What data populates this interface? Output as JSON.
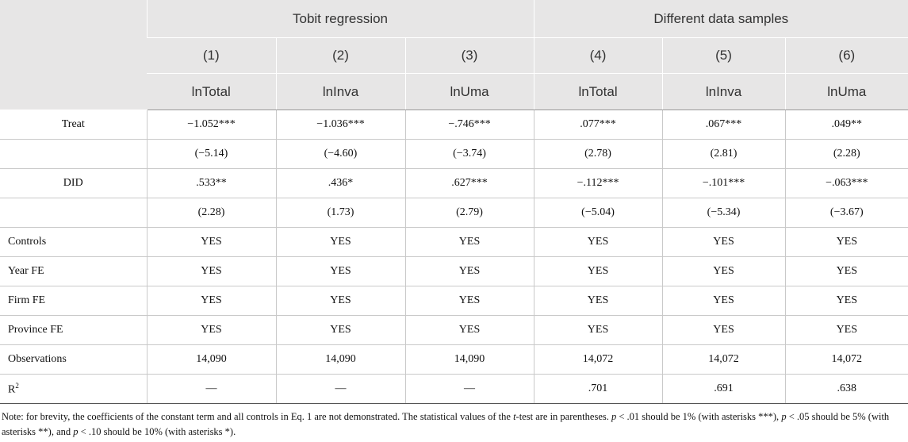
{
  "header": {
    "groups": [
      "Tobit regression",
      "Different data samples"
    ],
    "columns": [
      "(1)",
      "(2)",
      "(3)",
      "(4)",
      "(5)",
      "(6)"
    ],
    "dep_vars": [
      "lnTotal",
      "lnInva",
      "lnUma",
      "lnTotal",
      "lnInva",
      "lnUma"
    ]
  },
  "rows": [
    {
      "label": "Treat",
      "values": [
        "−1.052***",
        "−1.036***",
        "−.746***",
        ".077***",
        ".067***",
        ".049**"
      ]
    },
    {
      "label": "",
      "values": [
        "(−5.14)",
        "(−4.60)",
        "(−3.74)",
        "(2.78)",
        "(2.81)",
        "(2.28)"
      ]
    },
    {
      "label": "DID",
      "values": [
        ".533**",
        ".436*",
        ".627***",
        "−.112***",
        "−.101***",
        "−.063***"
      ]
    },
    {
      "label": "",
      "values": [
        "(2.28)",
        "(1.73)",
        "(2.79)",
        "(−5.04)",
        "(−5.34)",
        "(−3.67)"
      ]
    },
    {
      "label": "Controls",
      "values": [
        "YES",
        "YES",
        "YES",
        "YES",
        "YES",
        "YES"
      ]
    },
    {
      "label": "Year FE",
      "values": [
        "YES",
        "YES",
        "YES",
        "YES",
        "YES",
        "YES"
      ]
    },
    {
      "label": "Firm FE",
      "values": [
        "YES",
        "YES",
        "YES",
        "YES",
        "YES",
        "YES"
      ]
    },
    {
      "label": "Province FE",
      "values": [
        "YES",
        "YES",
        "YES",
        "YES",
        "YES",
        "YES"
      ]
    },
    {
      "label": "Observations",
      "values": [
        "14,090",
        "14,090",
        "14,090",
        "14,072",
        "14,072",
        "14,072"
      ]
    },
    {
      "label": "R",
      "label_sup": "2",
      "values": [
        "—",
        "—",
        "—",
        ".701",
        ".691",
        ".638"
      ]
    }
  ],
  "note": {
    "p1": "Note: for brevity, the coefficients of the constant term and all controls in Eq. 1 are not demonstrated. The statistical values of the ",
    "t": "t",
    "p2": "-test are in parentheses. ",
    "pA": "p",
    "p3": " < .01 should be 1% (with asterisks ***), ",
    "pB": "p",
    "p4": " < .05 should be 5% (with asterisks **), and ",
    "pC": "p",
    "p5": " < .10 should be 10% (with asterisks *)."
  }
}
